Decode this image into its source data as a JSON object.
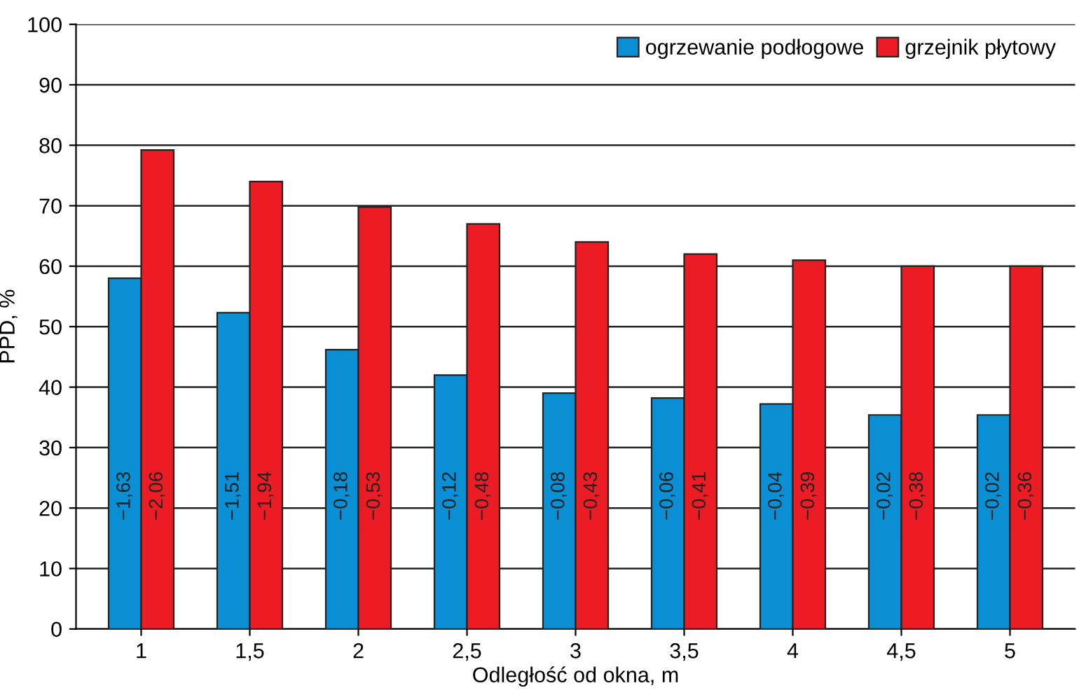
{
  "chart_data": {
    "type": "bar",
    "xlabel": "Odległość od okna, m",
    "ylabel": "PPD, %",
    "categories": [
      "1",
      "1,5",
      "2",
      "2,5",
      "3",
      "3,5",
      "4",
      "4,5",
      "5"
    ],
    "series": [
      {
        "name": "ogrzewanie podłogowe",
        "color": "#0a8fd4",
        "values": [
          58,
          52.3,
          46.2,
          42,
          39,
          38.2,
          37.2,
          35.4,
          35.4
        ]
      },
      {
        "name": "grzejnik płytowy",
        "color": "#ec1c24",
        "values": [
          79.2,
          74,
          69.8,
          67,
          64,
          62,
          61,
          60,
          60
        ]
      }
    ],
    "annotations": [
      {
        "text": "−1,63",
        "x": "1",
        "y": 22
      },
      {
        "text": "−2,06",
        "x": "1",
        "y": 22
      },
      {
        "text": "−1,51",
        "x": "1,5",
        "y": 22
      },
      {
        "text": "−1,94",
        "x": "1,5",
        "y": 22
      },
      {
        "text": "−0,18",
        "x": "2",
        "y": 22
      },
      {
        "text": "−0,53",
        "x": "2",
        "y": 22
      },
      {
        "text": "−0,12",
        "x": "2,5",
        "y": 22
      },
      {
        "text": "−0,48",
        "x": "2,5",
        "y": 22
      },
      {
        "text": "−0,08",
        "x": "3",
        "y": 22
      },
      {
        "text": "−0,43",
        "x": "3",
        "y": 22
      },
      {
        "text": "−0,06",
        "x": "3,5",
        "y": 22
      },
      {
        "text": "−0,41",
        "x": "3,5",
        "y": 22
      },
      {
        "text": "−0,04",
        "x": "4",
        "y": 22
      },
      {
        "text": "−0,39",
        "x": "4",
        "y": 22
      },
      {
        "text": "−0,02",
        "x": "4,5",
        "y": 22
      },
      {
        "text": "−0,38",
        "x": "4,5",
        "y": 22
      },
      {
        "text": "−0,02",
        "x": "5",
        "y": 22
      },
      {
        "text": "−0,36",
        "x": "5",
        "y": 22
      }
    ],
    "ylim": [
      0,
      100
    ],
    "yticks": [
      0,
      10,
      20,
      30,
      40,
      50,
      60,
      70,
      80,
      90,
      100
    ],
    "grid": "y",
    "legend": "top right"
  }
}
